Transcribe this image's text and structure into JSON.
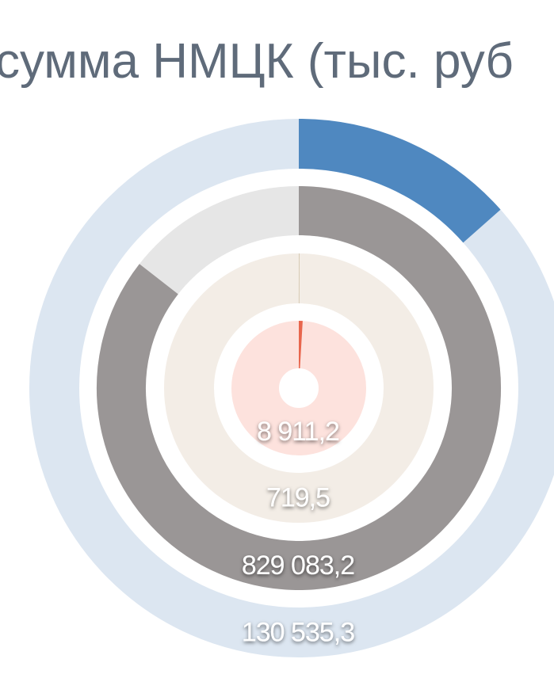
{
  "chart_data": {
    "type": "radial-donut",
    "title": "сумма НМЦК (тыс. руб",
    "values": [
      130535.3,
      829083.2,
      719.5,
      8911.2
    ],
    "value_labels": [
      "130 535,3",
      "829 083,2",
      "719,5",
      "8 911,2"
    ],
    "colors": [
      "#4f88c0",
      "#9a9696",
      "#c8b89a",
      "#e8664d"
    ],
    "track_colors": [
      "#dce6f1",
      "#e6e6e6",
      "#f3ede6",
      "#fde2dd"
    ]
  }
}
